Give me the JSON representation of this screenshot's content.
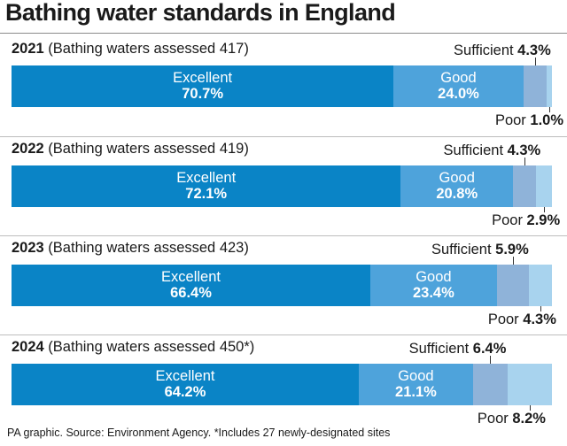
{
  "title": "Bathing water standards in England",
  "source": "PA graphic. Source: Environment Agency. *Includes 27 newly-designated sites",
  "colors": {
    "excellent": "#0a84c6",
    "good": "#4ea3db",
    "sufficient": "#8fb3d9",
    "poor": "#a8d3ee"
  },
  "chart_data": {
    "type": "bar",
    "orientation": "horizontal-stacked-100",
    "title": "Bathing water standards in England",
    "categories": [
      "Excellent",
      "Good",
      "Sufficient",
      "Poor"
    ],
    "years": [
      {
        "year": "2021",
        "label": "(Bathing waters assessed 417)",
        "values": [
          70.7,
          24.0,
          4.3,
          1.0
        ],
        "labels": [
          "70.7%",
          "24.0%",
          "4.3%",
          "1.0%"
        ]
      },
      {
        "year": "2022",
        "label": "(Bathing waters assessed 419)",
        "values": [
          72.1,
          20.8,
          4.3,
          2.9
        ],
        "labels": [
          "72.1%",
          "20.8%",
          "4.3%",
          "2.9%"
        ]
      },
      {
        "year": "2023",
        "label": "(Bathing waters assessed 423)",
        "values": [
          66.4,
          23.4,
          5.9,
          4.3
        ],
        "labels": [
          "66.4%",
          "23.4%",
          "5.9%",
          "4.3%"
        ]
      },
      {
        "year": "2024",
        "label": "(Bathing waters assessed 450*)",
        "values": [
          64.2,
          21.1,
          6.4,
          8.2
        ],
        "labels": [
          "64.2%",
          "21.1%",
          "6.4%",
          "8.2%"
        ]
      }
    ]
  }
}
